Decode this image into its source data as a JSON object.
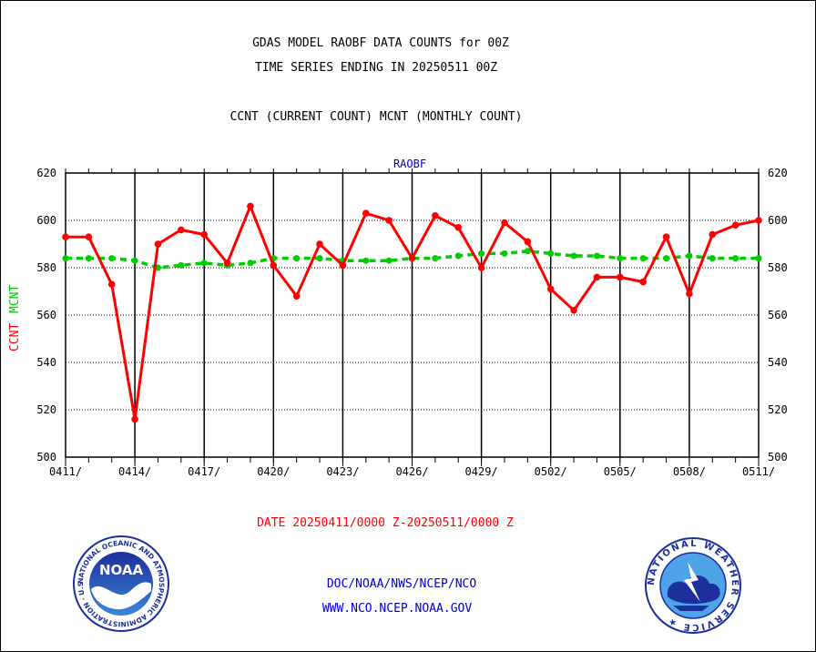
{
  "header": {
    "title_line1": "GDAS MODEL RAOBF DATA COUNTS for 00Z",
    "title_line2": "TIME SERIES ENDING IN 20250511 00Z",
    "legend_text": "CCNT (CURRENT COUNT) MCNT (MONTHLY COUNT)"
  },
  "footer": {
    "date_range": "DATE 20250411/0000 Z-20250511/0000 Z",
    "org_line": "DOC/NOAA/NWS/NCEP/NCO",
    "url_line": "WWW.NCO.NCEP.NOAA.GOV"
  },
  "logos": {
    "noaa_text": "NOAA",
    "noaa_ring": "NATIONAL OCEANIC AND ATMOSPHERIC ADMINISTRATION · U.S. DEPARTMENT OF COMMERCE ·",
    "nws_ring": "NATIONAL WEATHER SERVICE ★"
  },
  "colors": {
    "ccnt": "#ff0000",
    "mcnt": "#00cc00",
    "label_blue": "#0000cc",
    "grid": "#000000"
  },
  "chart_data": {
    "type": "line",
    "title": "RAOBF",
    "ylabel_left_ccnt": "CCNT",
    "ylabel_left_mcnt": "MCNT",
    "ylim": [
      500,
      620
    ],
    "yticks": [
      500,
      520,
      540,
      560,
      580,
      600,
      620
    ],
    "x_count": 31,
    "x_tick_labels": [
      {
        "index": 0,
        "label": "0411/"
      },
      {
        "index": 3,
        "label": "0414/"
      },
      {
        "index": 6,
        "label": "0417/"
      },
      {
        "index": 9,
        "label": "0420/"
      },
      {
        "index": 12,
        "label": "0423/"
      },
      {
        "index": 15,
        "label": "0426/"
      },
      {
        "index": 18,
        "label": "0429/"
      },
      {
        "index": 21,
        "label": "0502/"
      },
      {
        "index": 24,
        "label": "0505/"
      },
      {
        "index": 27,
        "label": "0508/"
      },
      {
        "index": 30,
        "label": "0511/"
      }
    ],
    "grid": true,
    "series": [
      {
        "name": "CCNT",
        "color": "#ff0000",
        "values": [
          593,
          593,
          573,
          516,
          590,
          596,
          594,
          582,
          606,
          581,
          568,
          590,
          581,
          603,
          600,
          584,
          602,
          597,
          580,
          599,
          591,
          571,
          562,
          576,
          576,
          574,
          593,
          569,
          594,
          598,
          600
        ]
      },
      {
        "name": "MCNT",
        "color": "#00cc00",
        "values": [
          584,
          584,
          584,
          583,
          580,
          581,
          582,
          581,
          582,
          584,
          584,
          584,
          583,
          583,
          583,
          584,
          584,
          585,
          586,
          586,
          587,
          586,
          585,
          585,
          584,
          584,
          584,
          585,
          584,
          584,
          584
        ]
      }
    ]
  }
}
